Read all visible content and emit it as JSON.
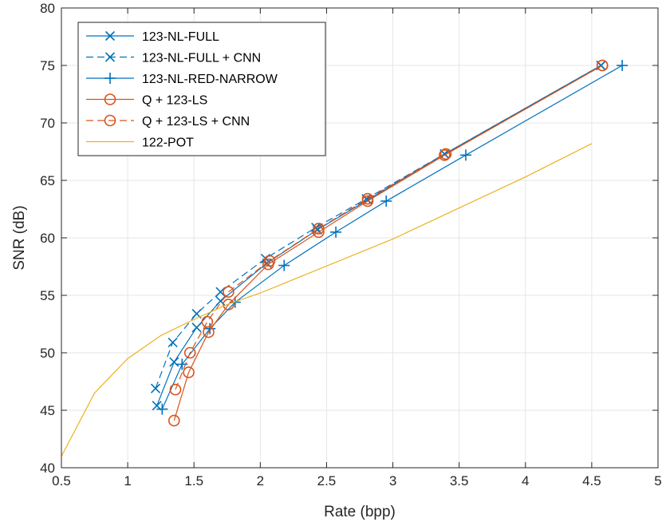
{
  "chart_data": {
    "type": "line",
    "xlabel": "Rate (bpp)",
    "ylabel": "SNR (dB)",
    "xlim": [
      0.5,
      5
    ],
    "ylim": [
      40,
      80
    ],
    "xticks": [
      0.5,
      1,
      1.5,
      2,
      2.5,
      3,
      3.5,
      4,
      4.5,
      5
    ],
    "xtick_labels": [
      "0.5",
      "1",
      "1.5",
      "2",
      "2.5",
      "3",
      "3.5",
      "4",
      "4.5",
      "5"
    ],
    "yticks": [
      40,
      45,
      50,
      55,
      60,
      65,
      70,
      75,
      80
    ],
    "ytick_labels": [
      "40",
      "45",
      "50",
      "55",
      "60",
      "65",
      "70",
      "75",
      "80"
    ],
    "grid": true,
    "legend_position": "top-left",
    "series": [
      {
        "name": "123-NL-FULL",
        "color": "#0072BD",
        "dash": "solid",
        "marker": "x",
        "x": [
          1.22,
          1.35,
          1.52,
          1.7,
          2.05,
          2.43,
          2.81,
          3.39,
          4.57
        ],
        "y": [
          45.4,
          49.2,
          52.2,
          54.5,
          57.8,
          60.7,
          63.3,
          67.3,
          75.0
        ]
      },
      {
        "name": "123-NL-FULL + CNN",
        "color": "#0072BD",
        "dash": "dashed",
        "marker": "x",
        "x": [
          1.21,
          1.34,
          1.52,
          1.7,
          2.04,
          2.42,
          2.8,
          3.39,
          4.57
        ],
        "y": [
          46.9,
          50.9,
          53.4,
          55.3,
          58.2,
          60.9,
          63.4,
          67.3,
          75.0
        ]
      },
      {
        "name": "123-NL-RED-NARROW",
        "color": "#0072BD",
        "dash": "solid",
        "marker": "+",
        "x": [
          1.26,
          1.41,
          1.62,
          1.81,
          2.18,
          2.57,
          2.95,
          3.55,
          4.73
        ],
        "y": [
          45.1,
          49.0,
          52.1,
          54.4,
          57.6,
          60.5,
          63.2,
          67.2,
          75.0
        ]
      },
      {
        "name": "Q + 123-LS",
        "color": "#D95319",
        "dash": "solid",
        "marker": "o",
        "x": [
          1.35,
          1.46,
          1.61,
          1.76,
          2.06,
          2.44,
          2.81,
          3.39,
          4.58
        ],
        "y": [
          44.1,
          48.3,
          51.8,
          54.2,
          57.7,
          60.5,
          63.2,
          67.2,
          75.0
        ]
      },
      {
        "name": "Q + 123-LS + CNN",
        "color": "#D95319",
        "dash": "dashed",
        "marker": "o",
        "x": [
          1.36,
          1.47,
          1.6,
          1.76,
          2.07,
          2.44,
          2.81,
          3.4,
          4.58
        ],
        "y": [
          46.8,
          50.0,
          52.7,
          55.3,
          58.0,
          60.8,
          63.4,
          67.3,
          75.0
        ]
      },
      {
        "name": "122-POT",
        "color": "#EDB120",
        "dash": "solid",
        "marker": "none",
        "x": [
          0.5,
          0.75,
          1.0,
          1.25,
          1.5,
          1.75,
          2.0,
          3.0,
          4.0,
          4.5
        ],
        "y": [
          41.0,
          46.5,
          49.5,
          51.5,
          52.9,
          54.2,
          55.2,
          59.9,
          65.3,
          68.2
        ]
      }
    ]
  }
}
